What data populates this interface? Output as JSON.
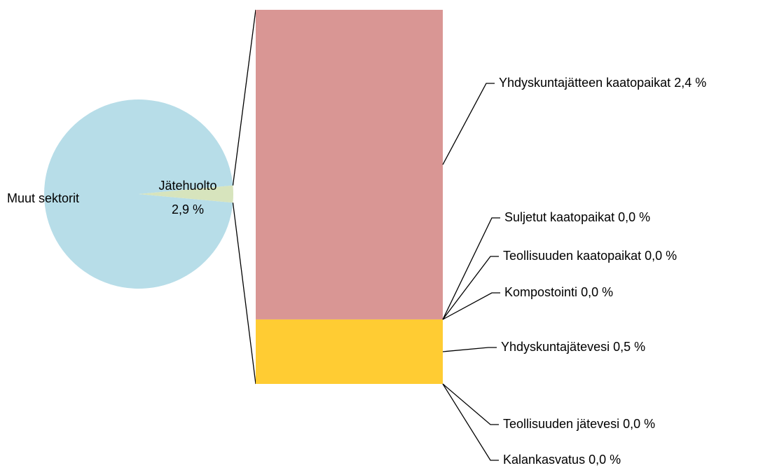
{
  "chart_data": {
    "type": "bar-of-pie",
    "pie": {
      "categories": [
        "Muut sektorit",
        "Jätehuolto"
      ],
      "values": [
        97.1,
        2.9
      ],
      "value_labels": [
        null,
        "2,9 %"
      ],
      "colors": [
        "#b7dde8",
        "#d7e4bd"
      ]
    },
    "bar": {
      "categories": [
        "Yhdyskuntajätteen kaatopaikat",
        "Suljetut kaatopaikat",
        "Teollisuuden kaatopaikat",
        "Kompostointi",
        "Yhdyskuntajätevesi",
        "Teollisuuden jätevesi",
        "Kalankasvatus"
      ],
      "values": [
        2.4,
        0.0,
        0.0,
        0.0,
        0.5,
        0.0,
        0.0
      ],
      "value_labels": [
        "2,4 %",
        "0,0 %",
        "0,0 %",
        "0,0 %",
        "0,5 %",
        "0,0 %",
        "0,0 %"
      ],
      "colors": [
        "#d99694",
        "#b3a2c7",
        "#93cddd",
        "#c3d69b",
        "#ffcc33",
        "#8eb4e3",
        "#fac090"
      ]
    }
  }
}
